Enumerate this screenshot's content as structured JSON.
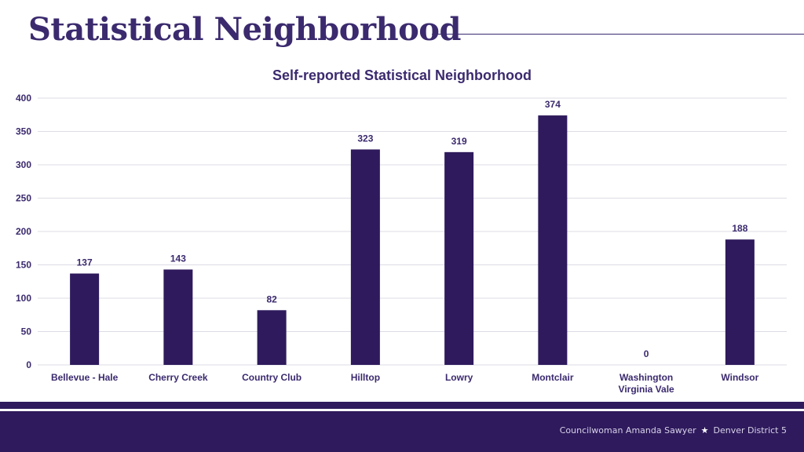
{
  "page": {
    "title": "Statistical Neighborhood"
  },
  "footer": {
    "left": "Councilwoman Amanda Sawyer",
    "separator": "★",
    "right": "Denver District 5"
  },
  "colors": {
    "bar": "#2e1a5c",
    "text": "#3b2a6e",
    "grid": "#dcdce6",
    "footer": "#2e1a5c"
  },
  "chart_data": {
    "type": "bar",
    "title": "Self-reported Statistical Neighborhood",
    "xlabel": "",
    "ylabel": "",
    "ylim": [
      0,
      400
    ],
    "yticks": [
      0,
      50,
      100,
      150,
      200,
      250,
      300,
      350,
      400
    ],
    "grid": true,
    "legend": "none",
    "categories": [
      "Bellevue - Hale",
      "Cherry Creek",
      "Country Club",
      "Hilltop",
      "Lowry",
      "Montclair",
      "Washington Virginia Vale",
      "Windsor"
    ],
    "category_lines": [
      [
        "Bellevue - Hale"
      ],
      [
        "Cherry Creek"
      ],
      [
        "Country Club"
      ],
      [
        "Hilltop"
      ],
      [
        "Lowry"
      ],
      [
        "Montclair"
      ],
      [
        "Washington",
        "Virginia Vale"
      ],
      [
        "Windsor"
      ]
    ],
    "values": [
      137,
      143,
      82,
      323,
      319,
      374,
      0,
      188
    ]
  }
}
